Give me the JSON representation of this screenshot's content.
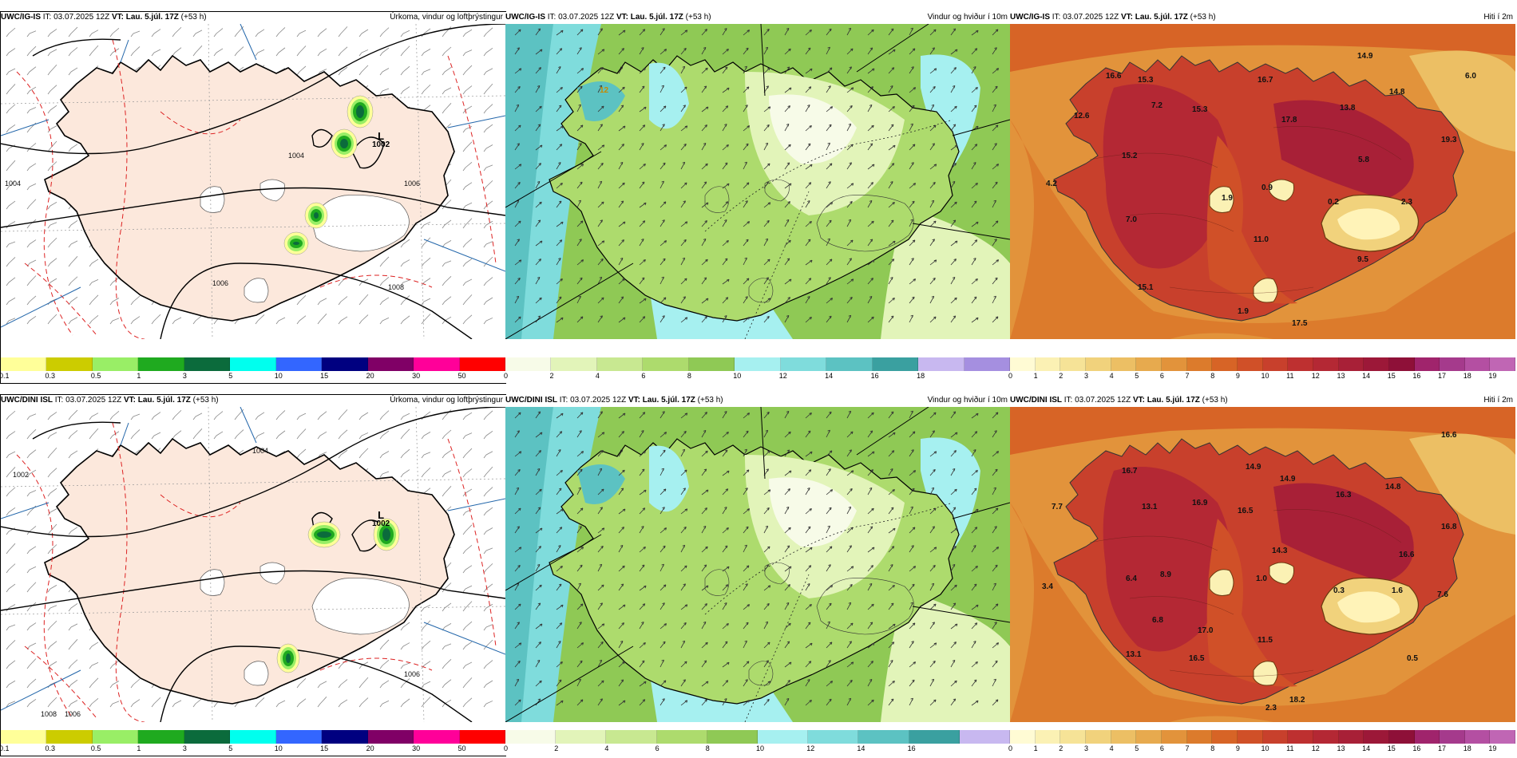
{
  "panels": [
    {
      "model": "UWC/IG-IS",
      "it_label": "IT:",
      "it": "03.07.2025 12Z",
      "vt_label": "VT:",
      "vt": "Lau. 5.júl. 17Z",
      "lead": "(+53 h)",
      "title": "Úrkoma, vindur og loftþrýstingur",
      "kind": "precip",
      "low": {
        "letter": "L",
        "pressure": "1002"
      },
      "isobars": [
        "1004",
        "1004",
        "1006",
        "1006",
        "1008"
      ],
      "colorbar": {
        "colors": [
          "#ffff99",
          "#cccc00",
          "#99ee66",
          "#1faa1f",
          "#0b6b3c",
          "#00ffee",
          "#3366ff",
          "#000080",
          "#800066",
          "#ff0099",
          "#ff0000"
        ],
        "ticks": [
          "0.1",
          "0.3",
          "0.5",
          "1",
          "3",
          "5",
          "10",
          "15",
          "20",
          "30",
          "50"
        ]
      }
    },
    {
      "model": "UWC/IG-IS",
      "it_label": "IT:",
      "it": "03.07.2025 12Z",
      "vt_label": "VT:",
      "vt": "Lau. 5.júl. 17Z",
      "lead": "(+53 h)",
      "title": "Vindur og hviður í 10m",
      "kind": "wind",
      "gust_label": "12",
      "colorbar": {
        "colors": [
          "#f7fbe8",
          "#e2f4b9",
          "#c8e891",
          "#addb6d",
          "#8fc955",
          "#a6f0f0",
          "#7fdcdc",
          "#5cc2c2",
          "#3aa0a0",
          "#c8b8f0",
          "#a58fe0"
        ],
        "ticks": [
          "0",
          "2",
          "4",
          "6",
          "8",
          "10",
          "12",
          "14",
          "16",
          "18"
        ]
      }
    },
    {
      "model": "UWC/IG-IS",
      "it_label": "IT:",
      "it": "03.07.2025 12Z",
      "vt_label": "VT:",
      "vt": "Lau. 5.júl. 17Z",
      "lead": "(+53 h)",
      "title": "Hiti í 2m",
      "kind": "temp",
      "temps": [
        "14.9",
        "16.6",
        "15.3",
        "16.7",
        "6.0",
        "14.8",
        "7.2",
        "15.3",
        "17.8",
        "13.8",
        "12.6",
        "19.3",
        "15.2",
        "5.8",
        "4.2",
        "0.9",
        "1.9",
        "0.2",
        "2.3",
        "7.0",
        "11.0",
        "9.5",
        "15.1",
        "1.9",
        "17.5"
      ],
      "colorbar": {
        "colors": [
          "#fffbd4",
          "#fbf1b4",
          "#f6e397",
          "#f1d27c",
          "#ecbf64",
          "#e7aa4e",
          "#e2933b",
          "#dc7b2c",
          "#d76426",
          "#d05028",
          "#c8402c",
          "#be3030",
          "#b42834",
          "#a82037",
          "#9c1838",
          "#8e1038",
          "#a0246c",
          "#a53a8c",
          "#b44fa2",
          "#c066b4"
        ],
        "ticks": [
          "0",
          "1",
          "2",
          "3",
          "4",
          "5",
          "6",
          "7",
          "8",
          "9",
          "10",
          "11",
          "12",
          "13",
          "14",
          "15",
          "16",
          "17",
          "18",
          "19"
        ]
      }
    },
    {
      "model": "UWC/DINI ISL",
      "it_label": "IT:",
      "it": "03.07.2025 12Z",
      "vt_label": "VT:",
      "vt": "Lau. 5.júl. 17Z",
      "lead": "(+53 h)",
      "title": "Úrkoma, vindur og loftþrýstingur",
      "kind": "precip",
      "low": {
        "letter": "L",
        "pressure": "1002"
      },
      "isobars": [
        "1002",
        "1004",
        "1006",
        "1006",
        "1008"
      ],
      "colorbar": {
        "colors": [
          "#ffff99",
          "#cccc00",
          "#99ee66",
          "#1faa1f",
          "#0b6b3c",
          "#00ffee",
          "#3366ff",
          "#000080",
          "#800066",
          "#ff0099",
          "#ff0000"
        ],
        "ticks": [
          "0.1",
          "0.3",
          "0.5",
          "1",
          "3",
          "5",
          "10",
          "15",
          "20",
          "30",
          "50"
        ]
      }
    },
    {
      "model": "UWC/DINI ISL",
      "it_label": "IT:",
      "it": "03.07.2025 12Z",
      "vt_label": "VT:",
      "vt": "Lau. 5.júl. 17Z",
      "lead": "(+53 h)",
      "title": "Vindur og hviður í 10m",
      "kind": "wind",
      "gust_label": "",
      "colorbar": {
        "colors": [
          "#f7fbe8",
          "#e2f4b9",
          "#c8e891",
          "#addb6d",
          "#8fc955",
          "#a6f0f0",
          "#7fdcdc",
          "#5cc2c2",
          "#3aa0a0",
          "#c8b8f0"
        ],
        "ticks": [
          "0",
          "2",
          "4",
          "6",
          "8",
          "10",
          "12",
          "14",
          "16"
        ]
      }
    },
    {
      "model": "UWC/DINI ISL",
      "it_label": "IT:",
      "it": "03.07.2025 12Z",
      "vt_label": "VT:",
      "vt": "Lau. 5.júl. 17Z",
      "lead": "(+53 h)",
      "title": "Hiti í 2m",
      "kind": "temp",
      "temps": [
        "16.6",
        "16.7",
        "14.9",
        "14.9",
        "16.3",
        "14.8",
        "7.7",
        "13.1",
        "16.9",
        "16.5",
        "16.8",
        "14.3",
        "16.6",
        "6.4",
        "8.9",
        "3.4",
        "1.0",
        "0.3",
        "1.6",
        "7.6",
        "6.8",
        "17.0",
        "11.5",
        "13.1",
        "16.5",
        "0.5",
        "2.3",
        "18.2"
      ],
      "colorbar": {
        "colors": [
          "#fffbd4",
          "#fbf1b4",
          "#f6e397",
          "#f1d27c",
          "#ecbf64",
          "#e7aa4e",
          "#e2933b",
          "#dc7b2c",
          "#d76426",
          "#d05028",
          "#c8402c",
          "#be3030",
          "#b42834",
          "#a82037",
          "#9c1838",
          "#8e1038",
          "#a0246c",
          "#a53a8c",
          "#b44fa2",
          "#c066b4"
        ],
        "ticks": [
          "0",
          "1",
          "2",
          "3",
          "4",
          "5",
          "6",
          "7",
          "8",
          "9",
          "10",
          "11",
          "12",
          "13",
          "14",
          "15",
          "16",
          "17",
          "18",
          "19"
        ]
      }
    }
  ]
}
